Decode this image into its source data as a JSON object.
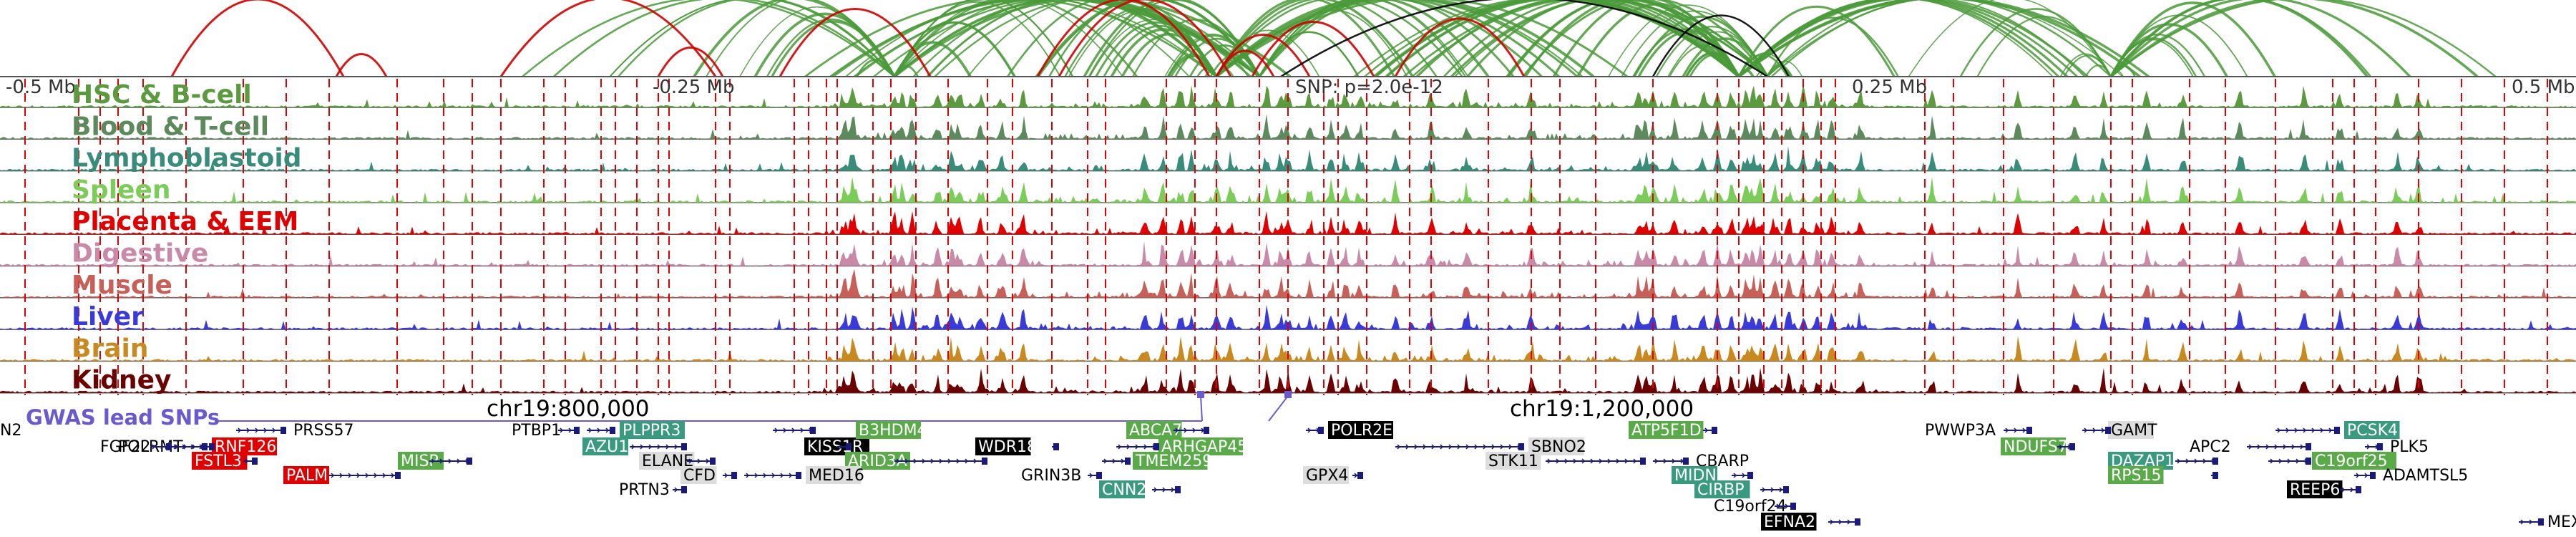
{
  "axis": {
    "ticks": [
      "-0.5 Mb",
      "-0.25 Mb",
      "0.25 Mb",
      "0.5 Mb"
    ],
    "snp_label": "SNP: p=2.0e-12"
  },
  "tracks": [
    {
      "name": "HSC & B-cell",
      "color": "#5b9a3e"
    },
    {
      "name": "Blood & T-cell",
      "color": "#5c8a5c"
    },
    {
      "name": "Lymphoblastoid",
      "color": "#3a8c7a"
    },
    {
      "name": "Spleen",
      "color": "#7ccc5a"
    },
    {
      "name": "Placenta & EEM",
      "color": "#e00000"
    },
    {
      "name": "Digestive",
      "color": "#c88aa8"
    },
    {
      "name": "Muscle",
      "color": "#c8605a"
    },
    {
      "name": "Liver",
      "color": "#3a3ad8"
    },
    {
      "name": "Brain",
      "color": "#c88a20"
    },
    {
      "name": "Kidney",
      "color": "#6a0000"
    }
  ],
  "coords": {
    "gwas_label": "GWAS lead SNPs",
    "left": "chr19:800,000",
    "right": "chr19:1,200,000"
  },
  "colors": {
    "arc_green": "#4a9a3a",
    "arc_red": "#d00000",
    "arc_black": "#000000",
    "red_line": "#e00000",
    "highlight": "#dddddd",
    "gene_line": "#1a1a7a",
    "gwas": "#6a5acd"
  },
  "genes": [
    {
      "name": "N2",
      "style": "plain"
    },
    {
      "name": "POLRMT",
      "style": "plain"
    },
    {
      "name": "PRSS57",
      "style": "plain"
    },
    {
      "name": "FGF22",
      "style": "plain"
    },
    {
      "name": "RNF126",
      "style": "red"
    },
    {
      "name": "FSTL3",
      "style": "red"
    },
    {
      "name": "PALM",
      "style": "red"
    },
    {
      "name": "MISP",
      "style": "green"
    },
    {
      "name": "PTBP1",
      "style": "plain"
    },
    {
      "name": "PLPPR3",
      "style": "teal"
    },
    {
      "name": "AZU1",
      "style": "teal"
    },
    {
      "name": "ELANE",
      "style": "gray"
    },
    {
      "name": "CFD",
      "style": "gray"
    },
    {
      "name": "PRTN3",
      "style": "plain"
    },
    {
      "name": "KISS1R",
      "style": "black"
    },
    {
      "name": "B3HDM4",
      "style": "green"
    },
    {
      "name": "ARID3A",
      "style": "green"
    },
    {
      "name": "MED16",
      "style": "gray"
    },
    {
      "name": "WDR18",
      "style": "black"
    },
    {
      "name": "GRIN3B",
      "style": "plain"
    },
    {
      "name": "ABCA7",
      "style": "green"
    },
    {
      "name": "ARHGAP45",
      "style": "green"
    },
    {
      "name": "TMEM259",
      "style": "green"
    },
    {
      "name": "CNN2",
      "style": "teal"
    },
    {
      "name": "POLR2E",
      "style": "black"
    },
    {
      "name": "GPX4",
      "style": "gray"
    },
    {
      "name": "SBNO2",
      "style": "gray"
    },
    {
      "name": "STK11",
      "style": "gray"
    },
    {
      "name": "ATP5F1D",
      "style": "green"
    },
    {
      "name": "CBARP",
      "style": "plain"
    },
    {
      "name": "MIDN",
      "style": "teal"
    },
    {
      "name": "CIRBP",
      "style": "teal"
    },
    {
      "name": "C19orf24",
      "style": "plain"
    },
    {
      "name": "EFNA2",
      "style": "black"
    },
    {
      "name": "PWWP3A",
      "style": "plain"
    },
    {
      "name": "NDUFS7",
      "style": "green"
    },
    {
      "name": "GAMT",
      "style": "gray"
    },
    {
      "name": "DAZAP1",
      "style": "teal"
    },
    {
      "name": "RPS15",
      "style": "green"
    },
    {
      "name": "APC2",
      "style": "plain"
    },
    {
      "name": "PCSK4",
      "style": "teal"
    },
    {
      "name": "PLK5",
      "style": "plain"
    },
    {
      "name": "C19orf25",
      "style": "green"
    },
    {
      "name": "REEP6",
      "style": "black"
    },
    {
      "name": "ADAMTSL5",
      "style": "plain"
    },
    {
      "name": "MEX",
      "style": "plain"
    }
  ]
}
